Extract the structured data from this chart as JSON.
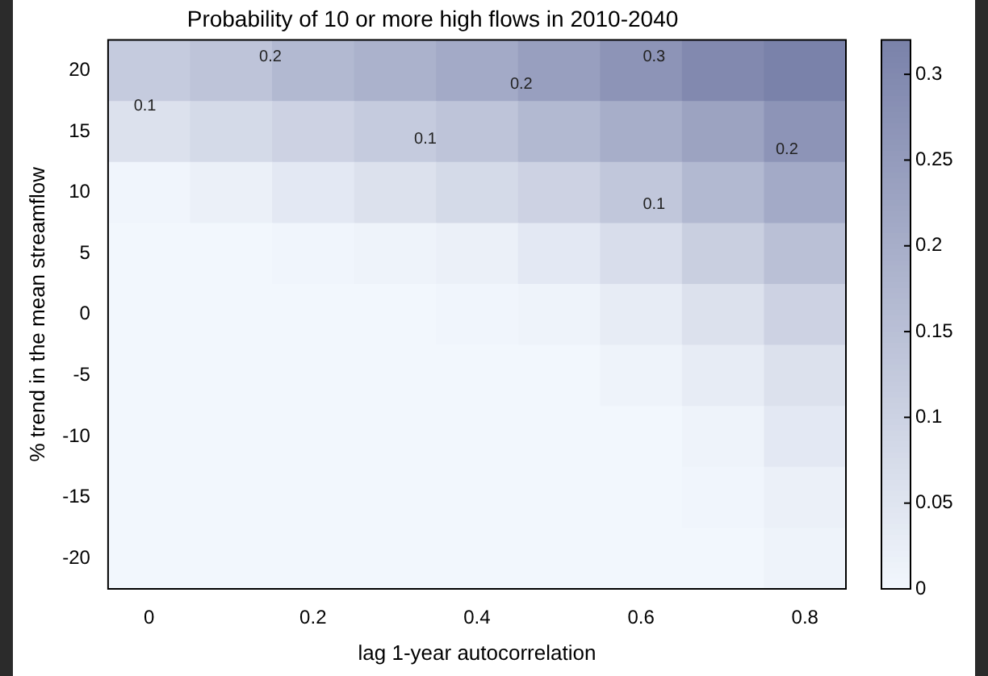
{
  "chart_data": {
    "type": "heatmap",
    "title": "Probability of 10 or more high flows in 2010-2040",
    "xlabel": "lag 1-year autocorrelation",
    "ylabel": "% trend in the mean streamflow",
    "categories": [
      "0",
      null,
      "0.2",
      null,
      "0.4",
      null,
      "0.6",
      null,
      "0.8"
    ],
    "y_categories": [
      "20",
      "15",
      "10",
      "5",
      "0",
      "-5",
      "-10",
      "-15",
      "-20"
    ],
    "cells": [
      [
        0.12,
        0.14,
        0.17,
        0.19,
        0.21,
        0.24,
        0.27,
        0.3,
        0.32
      ],
      [
        0.06,
        0.08,
        0.1,
        0.12,
        0.14,
        0.17,
        0.2,
        0.23,
        0.27
      ],
      [
        0.005,
        0.02,
        0.04,
        0.06,
        0.08,
        0.1,
        0.13,
        0.17,
        0.21
      ],
      [
        0,
        0,
        0.005,
        0.01,
        0.02,
        0.04,
        0.07,
        0.11,
        0.15
      ],
      [
        0,
        0,
        0,
        0,
        0.005,
        0.01,
        0.03,
        0.06,
        0.1
      ],
      [
        0,
        0,
        0,
        0,
        0,
        0,
        0.01,
        0.03,
        0.06
      ],
      [
        0,
        0,
        0,
        0,
        0,
        0,
        0,
        0.01,
        0.04
      ],
      [
        0,
        0,
        0,
        0,
        0,
        0,
        0,
        0.005,
        0.02
      ],
      [
        0,
        0,
        0,
        0,
        0,
        0,
        0,
        0,
        0.01
      ]
    ],
    "clim": [
      0,
      0.32
    ],
    "cticks": [
      0,
      0.05,
      0.1,
      0.15,
      0.2,
      0.25,
      0.3
    ],
    "annotations": [
      "0.1",
      "0.2",
      "0.1",
      "0.2",
      "0.3",
      "0.2",
      "0.1"
    ]
  }
}
